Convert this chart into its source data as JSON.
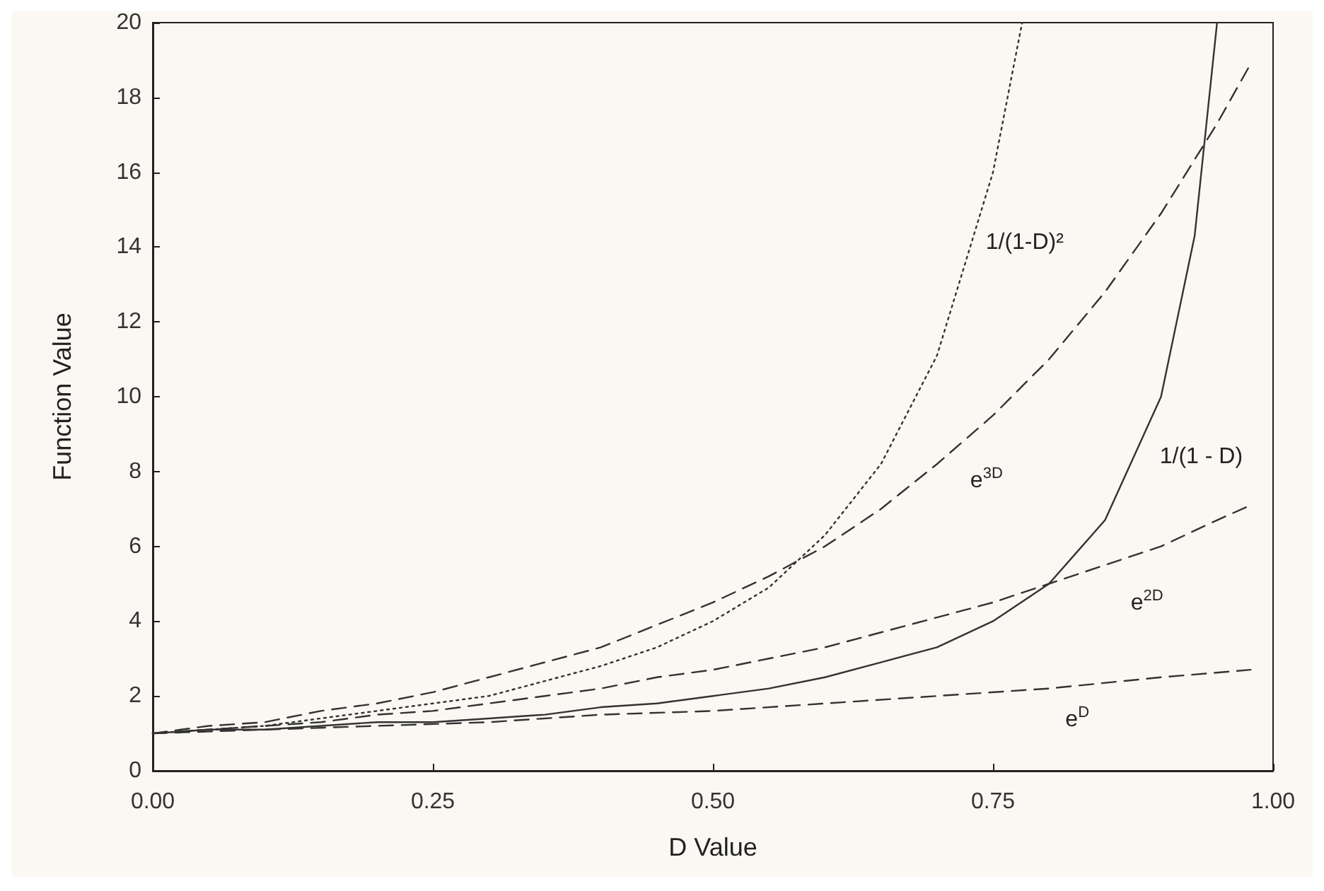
{
  "chart_data": {
    "type": "line",
    "xlabel": "D Value",
    "ylabel": "Function Value",
    "xlim": [
      0,
      1
    ],
    "ylim": [
      0,
      20
    ],
    "xticks": [
      {
        "value": 0,
        "label": "0.00"
      },
      {
        "value": 0.25,
        "label": "0.25"
      },
      {
        "value": 0.5,
        "label": "0.50"
      },
      {
        "value": 0.75,
        "label": "0.75"
      },
      {
        "value": 1,
        "label": "1.00"
      }
    ],
    "yticks": [
      0,
      2,
      4,
      6,
      8,
      10,
      12,
      14,
      16,
      18,
      20
    ],
    "grid": false,
    "legend": false,
    "marker": "none",
    "series": [
      {
        "name": "1/(1-D)²",
        "color": "#333333",
        "line_style": "dotted",
        "x": [
          0,
          0.05,
          0.1,
          0.15,
          0.2,
          0.25,
          0.3,
          0.35,
          0.4,
          0.45,
          0.5,
          0.55,
          0.6,
          0.65,
          0.7,
          0.75,
          0.776
        ],
        "values": [
          1,
          1.1,
          1.2,
          1.4,
          1.6,
          1.8,
          2.0,
          2.4,
          2.8,
          3.3,
          4.0,
          4.9,
          6.3,
          8.2,
          11.1,
          16,
          20
        ]
      },
      {
        "name": "e$^{3D}$",
        "color": "#333333",
        "line_style": "dashed",
        "x": [
          0,
          0.05,
          0.1,
          0.15,
          0.2,
          0.25,
          0.3,
          0.35,
          0.4,
          0.45,
          0.5,
          0.55,
          0.6,
          0.65,
          0.7,
          0.75,
          0.8,
          0.85,
          0.9,
          0.95,
          0.98
        ],
        "values": [
          1,
          1.2,
          1.3,
          1.6,
          1.8,
          2.1,
          2.5,
          2.9,
          3.3,
          3.9,
          4.5,
          5.2,
          6.0,
          7.0,
          8.2,
          9.5,
          11.0,
          12.8,
          14.9,
          17.3,
          18.9
        ]
      },
      {
        "name": "1/(1 - D)",
        "color": "#333333",
        "line_style": "solid",
        "x": [
          0,
          0.05,
          0.1,
          0.15,
          0.2,
          0.25,
          0.3,
          0.35,
          0.4,
          0.45,
          0.5,
          0.55,
          0.6,
          0.65,
          0.7,
          0.75,
          0.8,
          0.85,
          0.9,
          0.93,
          0.95
        ],
        "values": [
          1,
          1.1,
          1.1,
          1.2,
          1.3,
          1.3,
          1.4,
          1.5,
          1.7,
          1.8,
          2.0,
          2.2,
          2.5,
          2.9,
          3.3,
          4.0,
          5.0,
          6.7,
          10,
          14.3,
          20
        ]
      },
      {
        "name": "e$^{2D}$",
        "color": "#333333",
        "line_style": "dashed",
        "x": [
          0,
          0.05,
          0.1,
          0.15,
          0.2,
          0.25,
          0.3,
          0.35,
          0.4,
          0.45,
          0.5,
          0.55,
          0.6,
          0.65,
          0.7,
          0.75,
          0.8,
          0.85,
          0.9,
          0.95,
          0.98
        ],
        "values": [
          1,
          1.1,
          1.2,
          1.3,
          1.5,
          1.6,
          1.8,
          2.0,
          2.2,
          2.5,
          2.7,
          3.0,
          3.3,
          3.7,
          4.1,
          4.5,
          5.0,
          5.5,
          6.0,
          6.7,
          7.1
        ]
      },
      {
        "name": "e$^{D}$",
        "color": "#333333",
        "line_style": "dashed",
        "x": [
          0,
          0.1,
          0.2,
          0.3,
          0.4,
          0.5,
          0.6,
          0.7,
          0.8,
          0.9,
          0.98
        ],
        "values": [
          1,
          1.1,
          1.2,
          1.3,
          1.5,
          1.6,
          1.8,
          2.0,
          2.2,
          2.5,
          2.7
        ]
      }
    ]
  }
}
